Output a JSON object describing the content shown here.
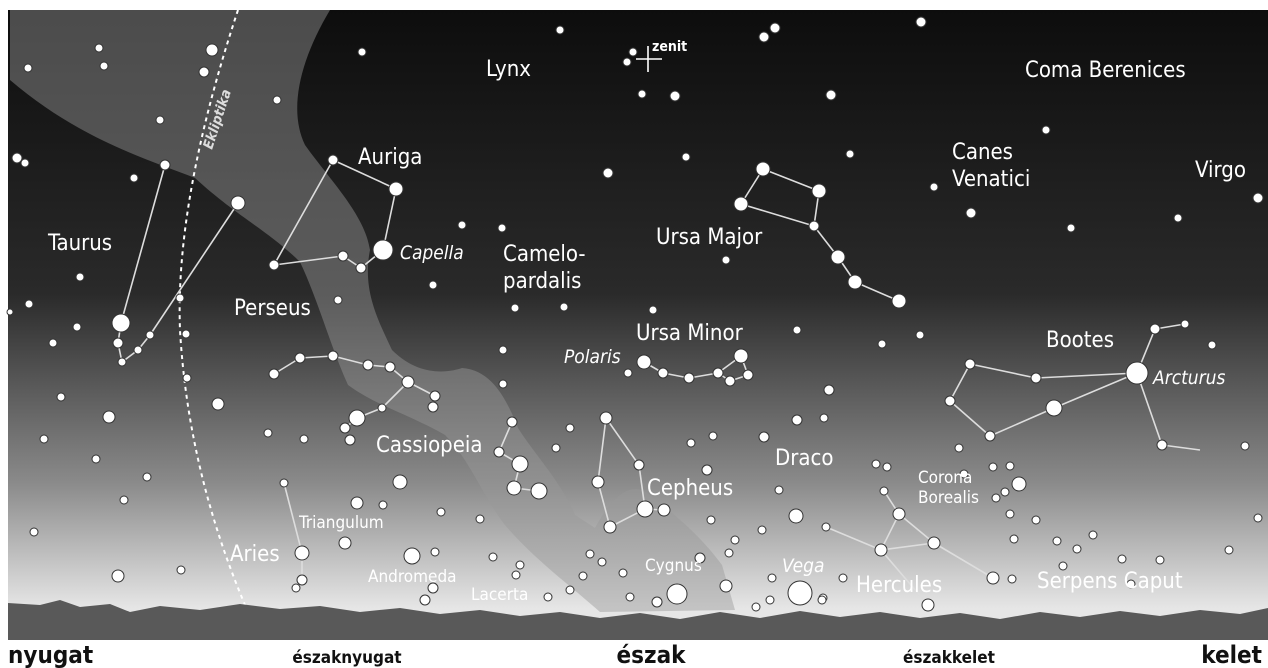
{
  "markers": {
    "zenith": "zenit",
    "ecliptic": "Ekliptika"
  },
  "constellations": [
    [
      "Lynx"
    ],
    [
      "Coma Berenices"
    ],
    [
      "Auriga"
    ],
    [
      "Canes",
      "Venatici"
    ],
    [
      "Virgo"
    ],
    [
      "Taurus"
    ],
    [
      "Camelo-",
      "pardalis"
    ],
    [
      "Ursa Major"
    ],
    [
      "Perseus"
    ],
    [
      "Ursa Minor"
    ],
    [
      "Bootes"
    ],
    [
      "Cassiopeia"
    ],
    [
      "Draco"
    ],
    [
      "Cepheus"
    ],
    [
      "Corona",
      "Borealis"
    ],
    [
      "Triangulum"
    ],
    [
      "Aries"
    ],
    [
      "Andromeda"
    ],
    [
      "Cygnus"
    ],
    [
      "Hercules"
    ],
    [
      "Serpens Caput"
    ],
    [
      "Lacerta"
    ]
  ],
  "stars": [
    "Capella",
    "Polaris",
    "Arcturus",
    "Vega"
  ],
  "directions": [
    "nyugat",
    "északnyugat",
    "észak",
    "északkelet",
    "kelet"
  ]
}
